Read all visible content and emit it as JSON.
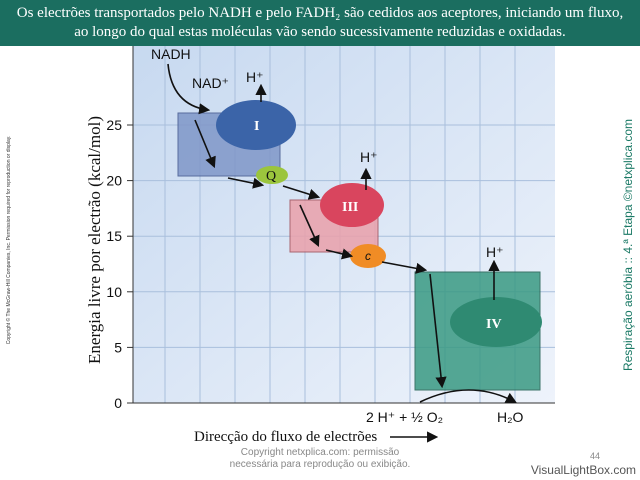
{
  "header": {
    "text": "Os electrões transportados pelo NADH e pelo FADH₂ são cedidos aos aceptores, iniciando um fluxo, ao longo do qual estas moléculas vão sendo sucessivamente reduzidas e oxidadas."
  },
  "figure": {
    "y_label": "Energia livre por electrão (kcal/mol)",
    "x_label": "Direcção do fluxo de electrões",
    "yticks": [
      0,
      5,
      10,
      15,
      20,
      25
    ],
    "labels": {
      "nadh": "NADH",
      "nad": "NAD⁺",
      "h1": "H⁺",
      "h3": "H⁺",
      "h4": "H⁺",
      "complex1": "I",
      "q": "Q",
      "complex3": "III",
      "c": "c",
      "complex4": "IV",
      "oxygen": "2 H⁺ + ½ O₂",
      "water": "H₂O"
    }
  },
  "side_copyright": "Copyright © The McGraw-Hill Companies, Inc. Permission required for reproduction or display.",
  "side_credit": "Respiração aeróbia :: 4.ª Etapa ©netxplica.com",
  "footer": {
    "copyright_line1": "Copyright netxplica.com: permissão",
    "copyright_line2": "necessária para reprodução ou exibição.",
    "page": "44",
    "brand": "VisualLightBox.com"
  }
}
